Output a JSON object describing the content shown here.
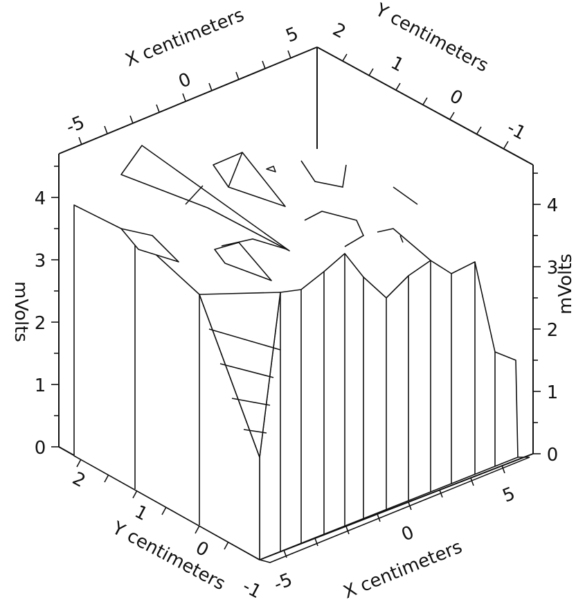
{
  "chart_data": {
    "type": "surface-3d",
    "title": "",
    "axes": {
      "x": {
        "label": "X centimeters",
        "range": [
          -6,
          6
        ],
        "ticks": [
          "-5",
          "0",
          "5"
        ]
      },
      "y": {
        "label": "Y centimeters",
        "range": [
          -1,
          2.5
        ],
        "ticks": [
          "-1",
          "0",
          "1",
          "2"
        ]
      },
      "z": {
        "label": "mVolts",
        "range": [
          0,
          4.5
        ],
        "ticks": [
          "0",
          "1",
          "2",
          "3",
          "4"
        ]
      }
    },
    "front_face_profile_x_centimeters": {
      "x": [
        -5.5,
        -4.9,
        -4.2,
        -3.5,
        -2.8,
        -2.1,
        -1.4,
        -0.7,
        0.0,
        0.7,
        1.4,
        2.1,
        2.8,
        3.5,
        4.2,
        4.9
      ],
      "z": [
        2.7,
        2.75,
        3.0,
        3.2,
        3.0,
        3.1,
        2.8,
        2.4,
        2.7,
        3.0,
        2.8,
        3.0,
        1.7,
        1.4,
        1.4,
        1.35
      ]
    },
    "left_face_profile_y_centimeters": {
      "y": [
        2.2,
        1.8,
        1.4,
        1.0,
        0.6,
        0.2,
        -0.2,
        -0.6,
        -1.0
      ],
      "z": [
        4.0,
        3.8,
        3.6,
        3.4,
        3.0,
        2.2,
        1.2,
        0.5,
        0.0
      ]
    },
    "peak_ridge_region": {
      "x_range": [
        -5,
        0
      ],
      "y_range": [
        0.5,
        2.5
      ],
      "z_max_approx": 4.5
    }
  }
}
